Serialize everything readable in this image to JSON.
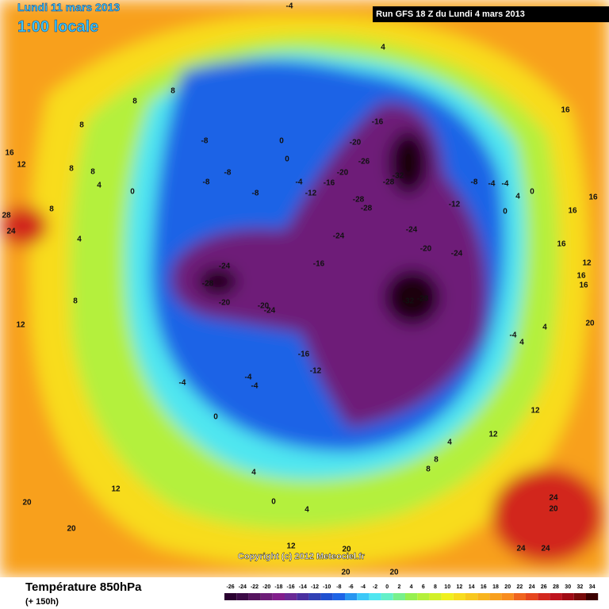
{
  "header": {
    "date": "Lundi 11 mars 2013",
    "local_time": "1:00 locale",
    "run": "Run GFS 18 Z du Lundi 4 mars 2013"
  },
  "copyright": "Copyright (c) 2012 Meteociel.fr",
  "footer": {
    "title": "Température 850hPa",
    "lead": "(+ 150h)"
  },
  "scale": {
    "values": [
      -26,
      -24,
      -22,
      -20,
      -18,
      -16,
      -14,
      -12,
      -10,
      -8,
      -6,
      -4,
      -2,
      0,
      2,
      4,
      6,
      8,
      10,
      12,
      14,
      16,
      18,
      20,
      22,
      24,
      26,
      28,
      30,
      32,
      34
    ],
    "colors": [
      "#2a0030",
      "#3c0a46",
      "#55145e",
      "#6e1e78",
      "#821e8c",
      "#6a2a96",
      "#4a30a0",
      "#3040b4",
      "#2050d0",
      "#1e64e6",
      "#2896f0",
      "#3cc8f8",
      "#50e6f0",
      "#64f0c8",
      "#78f08c",
      "#96f050",
      "#b4f03c",
      "#d2f028",
      "#f0f01e",
      "#f8dc1e",
      "#f8c81e",
      "#f8b41e",
      "#f8a01e",
      "#f88c1e",
      "#f0641e",
      "#e6461e",
      "#d2281e",
      "#be141e",
      "#a00a14",
      "#780a0a",
      "#3c0000"
    ]
  },
  "map_labels": [
    -4,
    4,
    8,
    8,
    8,
    16,
    12,
    8,
    8,
    4,
    0,
    8,
    28,
    24,
    4,
    8,
    12,
    -8,
    -8,
    -8,
    -8,
    0,
    0,
    -4,
    -12,
    -16,
    -20,
    -16,
    -20,
    -26,
    -32,
    -28,
    -28,
    -28,
    -24,
    -12,
    -24,
    -20,
    -24,
    -8,
    -4,
    -4,
    4,
    0,
    0,
    16,
    16,
    16,
    16,
    12,
    16,
    16,
    20,
    -24,
    -28,
    -20,
    -20,
    -24,
    -16,
    -32,
    -28,
    -16,
    -12,
    -4,
    -4,
    -4,
    0,
    4,
    0,
    4,
    12,
    20,
    20,
    12,
    20,
    20,
    20,
    24,
    24,
    24,
    20,
    4,
    8,
    8,
    12,
    4,
    4,
    -4,
    12
  ]
}
